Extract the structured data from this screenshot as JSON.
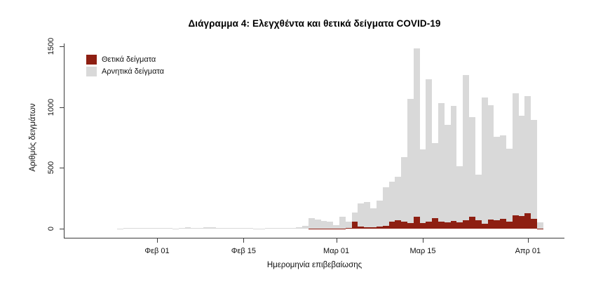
{
  "title": "Διάγραμμα 4: Ελεγχθέντα και θετικά δείγματα COVID-19",
  "legend": {
    "positive_label": "Θετικά δείγματα",
    "negative_label": "Αρνητικά δείγματα"
  },
  "colors": {
    "positive": "#8E1F12",
    "negative": "#D9D9D9",
    "axis": "#3c3c3c",
    "text": "#111111"
  },
  "y_axis": {
    "title": "Αριθμός δειγμάτων",
    "tick_values": [
      0,
      500,
      1000,
      1500
    ]
  },
  "x_axis": {
    "title": "Ημερομηνία επιβεβαίωσης",
    "ticks": [
      {
        "label": "Φεβ 01",
        "day_index": 6
      },
      {
        "label": "Φεβ 15",
        "day_index": 20
      },
      {
        "label": "Μαρ 01",
        "day_index": 35
      },
      {
        "label": "Μαρ 15",
        "day_index": 49
      },
      {
        "label": "Απρ 01",
        "day_index": 66
      }
    ]
  },
  "chart_data": {
    "type": "bar",
    "stacked": true,
    "grid": false,
    "legend_position": "top-left",
    "ylim": [
      0,
      1500
    ],
    "title": "Διάγραμμα 4: Ελεγχθέντα και θετικά δείγματα COVID-19",
    "xlabel": "Ημερομηνία επιβεβαίωσης",
    "ylabel": "Αριθμός δειγμάτων",
    "x": [
      "2020-01-26",
      "2020-01-27",
      "2020-01-28",
      "2020-01-29",
      "2020-01-30",
      "2020-01-31",
      "2020-02-01",
      "2020-02-02",
      "2020-02-03",
      "2020-02-04",
      "2020-02-05",
      "2020-02-06",
      "2020-02-07",
      "2020-02-08",
      "2020-02-09",
      "2020-02-10",
      "2020-02-11",
      "2020-02-12",
      "2020-02-13",
      "2020-02-14",
      "2020-02-15",
      "2020-02-16",
      "2020-02-17",
      "2020-02-18",
      "2020-02-19",
      "2020-02-20",
      "2020-02-21",
      "2020-02-22",
      "2020-02-23",
      "2020-02-24",
      "2020-02-25",
      "2020-02-26",
      "2020-02-27",
      "2020-02-28",
      "2020-02-29",
      "2020-03-01",
      "2020-03-02",
      "2020-03-03",
      "2020-03-04",
      "2020-03-05",
      "2020-03-06",
      "2020-03-07",
      "2020-03-08",
      "2020-03-09",
      "2020-03-10",
      "2020-03-11",
      "2020-03-12",
      "2020-03-13",
      "2020-03-14",
      "2020-03-15",
      "2020-03-16",
      "2020-03-17",
      "2020-03-18",
      "2020-03-19",
      "2020-03-20",
      "2020-03-21",
      "2020-03-22",
      "2020-03-23",
      "2020-03-24",
      "2020-03-25",
      "2020-03-26",
      "2020-03-27",
      "2020-03-28",
      "2020-03-29",
      "2020-03-30",
      "2020-03-31",
      "2020-04-01",
      "2020-04-02",
      "2020-04-03"
    ],
    "series": [
      {
        "name": "Θετικά δείγματα",
        "color": "#8E1F12",
        "values": [
          0,
          0,
          0,
          0,
          0,
          0,
          0,
          0,
          0,
          0,
          0,
          0,
          0,
          0,
          0,
          0,
          0,
          0,
          0,
          0,
          0,
          0,
          0,
          0,
          0,
          0,
          0,
          0,
          0,
          0,
          0,
          2,
          2,
          1,
          2,
          1,
          2,
          4,
          60,
          15,
          14,
          12,
          20,
          25,
          55,
          70,
          55,
          48,
          100,
          48,
          55,
          85,
          55,
          50,
          65,
          54,
          70,
          100,
          67,
          38,
          77,
          71,
          81,
          58,
          110,
          105,
          125,
          80,
          2
        ]
      },
      {
        "name": "Αρνητικά δείγματα",
        "color": "#D9D9D9",
        "values": [
          2,
          5,
          5,
          4,
          4,
          3,
          5,
          6,
          4,
          1,
          8,
          9,
          6,
          7,
          11,
          12,
          8,
          7,
          6,
          6,
          5,
          4,
          2,
          2,
          7,
          8,
          6,
          3,
          4,
          10,
          25,
          86,
          73,
          64,
          58,
          27,
          96,
          52,
          70,
          195,
          204,
          153,
          210,
          315,
          330,
          357,
          535,
          1022,
          1380,
          606,
          1176,
          617,
          980,
          804,
          943,
          458,
          1194,
          816,
          379,
          1043,
          940,
          687,
          686,
          602,
          1004,
          825,
          964,
          816,
          48
        ]
      }
    ]
  }
}
